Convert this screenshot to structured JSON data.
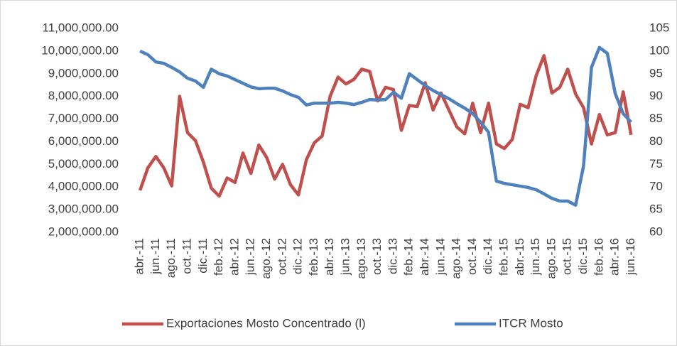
{
  "chart_data": {
    "type": "line",
    "categories": [
      "abr.-11",
      null,
      "jun.-11",
      null,
      "ago.-11",
      null,
      "oct.-11",
      null,
      "dic.-11",
      null,
      "feb.-12",
      null,
      "abr.-12",
      null,
      "jun.-12",
      null,
      "ago.-12",
      null,
      "oct.-12",
      null,
      "dic.-12",
      null,
      "feb.-13",
      null,
      "abr.-13",
      null,
      "jun.-13",
      null,
      "ago.-13",
      null,
      "oct.-13",
      null,
      "dic.-13",
      null,
      "feb.-14",
      null,
      "abr.-14",
      null,
      "jun.-14",
      null,
      "ago.-14",
      null,
      "oct.-14",
      null,
      "dic.-14",
      null,
      "feb.-15",
      null,
      "abr.-15",
      null,
      "jun.-15",
      null,
      "ago.-15",
      null,
      "oct.-15",
      null,
      "dic.-15",
      null,
      "feb.-16",
      null,
      "abr.-16",
      null,
      "jun.-16"
    ],
    "series": [
      {
        "name": "Exportaciones Mosto Concentrado (l)",
        "color": "#c0504d",
        "values": [
          3850000,
          4850000,
          5350000,
          4850000,
          4050000,
          8000000,
          6400000,
          6050000,
          5100000,
          3950000,
          3600000,
          4400000,
          4200000,
          5500000,
          4600000,
          5850000,
          5300000,
          4350000,
          5000000,
          4100000,
          3650000,
          5200000,
          5950000,
          6250000,
          8000000,
          8850000,
          8550000,
          8750000,
          9200000,
          9100000,
          7800000,
          8400000,
          8300000,
          6500000,
          7600000,
          7550000,
          8600000,
          7400000,
          8150000,
          7400000,
          6650000,
          6350000,
          7700000,
          6400000,
          7700000,
          5900000,
          5700000,
          6100000,
          7650000,
          7500000,
          8900000,
          9800000,
          8150000,
          8400000,
          9200000,
          8100000,
          7500000,
          5900000,
          7200000,
          6300000,
          6400000,
          8200000,
          6300000
        ]
      },
      {
        "name": "ITCR Mosto",
        "color": "#4f81bd",
        "axis": "y2",
        "values": [
          100,
          99.2,
          97.6,
          97.3,
          96.4,
          95.4,
          94.0,
          93.4,
          92.0,
          96.0,
          95.0,
          94.5,
          93.7,
          92.9,
          92.1,
          91.7,
          91.8,
          91.8,
          91.2,
          90.4,
          89.8,
          88.1,
          88.5,
          88.5,
          88.5,
          88.7,
          88.5,
          88.2,
          88.7,
          89.3,
          89.2,
          89.3,
          90.9,
          89.6,
          95.0,
          93.7,
          92.4,
          91.3,
          90.4,
          89.5,
          88.4,
          87.4,
          86.2,
          84.3,
          82.1,
          71.3,
          70.8,
          70.5,
          70.2,
          69.9,
          69.4,
          68.5,
          67.5,
          66.9,
          66.9,
          66.0,
          74.7,
          96.4,
          100.8,
          99.5,
          90.6,
          86.2,
          84.3
        ]
      }
    ],
    "ylim": [
      2000000,
      11000000
    ],
    "yticks": [
      {
        "value": 2000000,
        "label": "2,000,000.00"
      },
      {
        "value": 3000000,
        "label": "3,000,000.00"
      },
      {
        "value": 4000000,
        "label": "4,000,000.00"
      },
      {
        "value": 5000000,
        "label": "5,000,000.00"
      },
      {
        "value": 6000000,
        "label": "6,000,000.00"
      },
      {
        "value": 7000000,
        "label": "7,000,000.00"
      },
      {
        "value": 8000000,
        "label": "8,000,000.00"
      },
      {
        "value": 9000000,
        "label": "9,000,000.00"
      },
      {
        "value": 10000000,
        "label": "10,000,000.00"
      },
      {
        "value": 11000000,
        "label": "11,000,000.00"
      }
    ],
    "y2lim": [
      60,
      105
    ],
    "y2ticks": [
      60,
      65,
      70,
      75,
      80,
      85,
      90,
      95,
      100,
      105
    ],
    "grid": false,
    "legend": "bottom"
  }
}
